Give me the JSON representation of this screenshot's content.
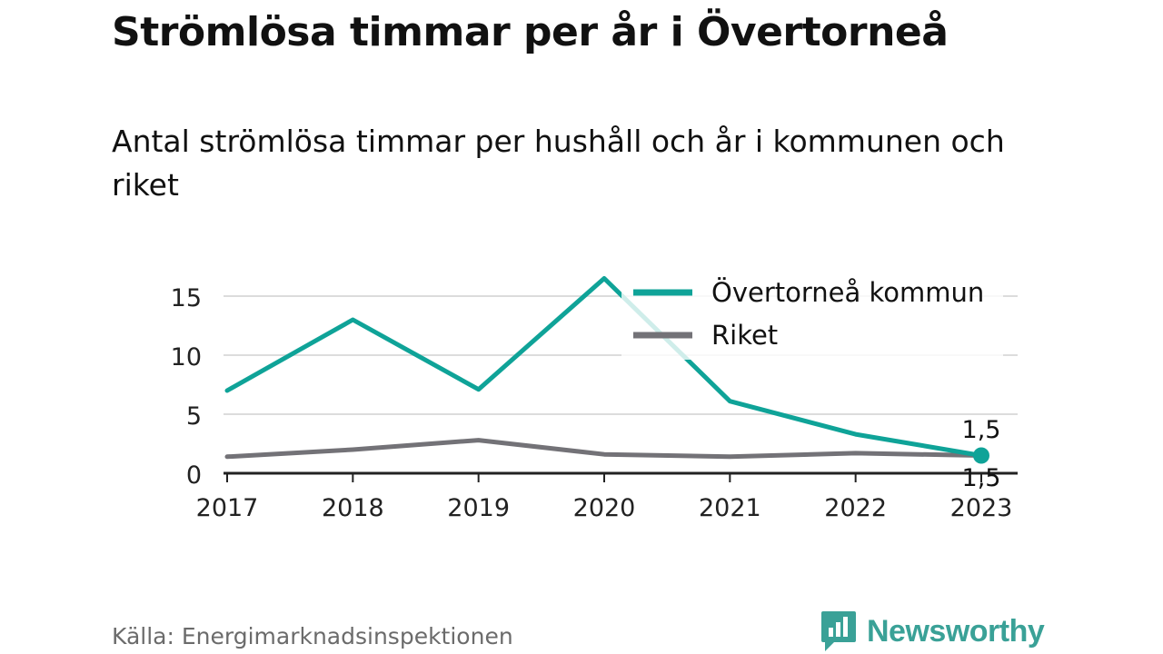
{
  "title": "Strömlösa timmar per år i Övertorneå",
  "subtitle": "Antal strömlösa timmar per hushåll och år i kommunen och riket",
  "source": "Källa: Energimarknadsinspektionen",
  "brand": {
    "name": "Newsworthy",
    "color": "#3aa197",
    "icon": "chart-bubble-icon"
  },
  "chart_data": {
    "type": "line",
    "x": [
      "2017",
      "2018",
      "2019",
      "2020",
      "2021",
      "2022",
      "2023"
    ],
    "y_ticks": [
      "0",
      "5",
      "10",
      "15"
    ],
    "ylim": [
      0,
      17
    ],
    "grid": true,
    "legend_placement": "top-right",
    "series": [
      {
        "name": "Övertorneå kommun",
        "color": "#0fa398",
        "values": [
          7.0,
          13.0,
          7.1,
          16.5,
          6.1,
          3.3,
          1.5
        ]
      },
      {
        "name": "Riket",
        "color": "#737277",
        "values": [
          1.4,
          2.0,
          2.8,
          1.6,
          1.4,
          1.7,
          1.5
        ]
      }
    ],
    "end_labels": [
      "1,5",
      "1,5"
    ]
  }
}
